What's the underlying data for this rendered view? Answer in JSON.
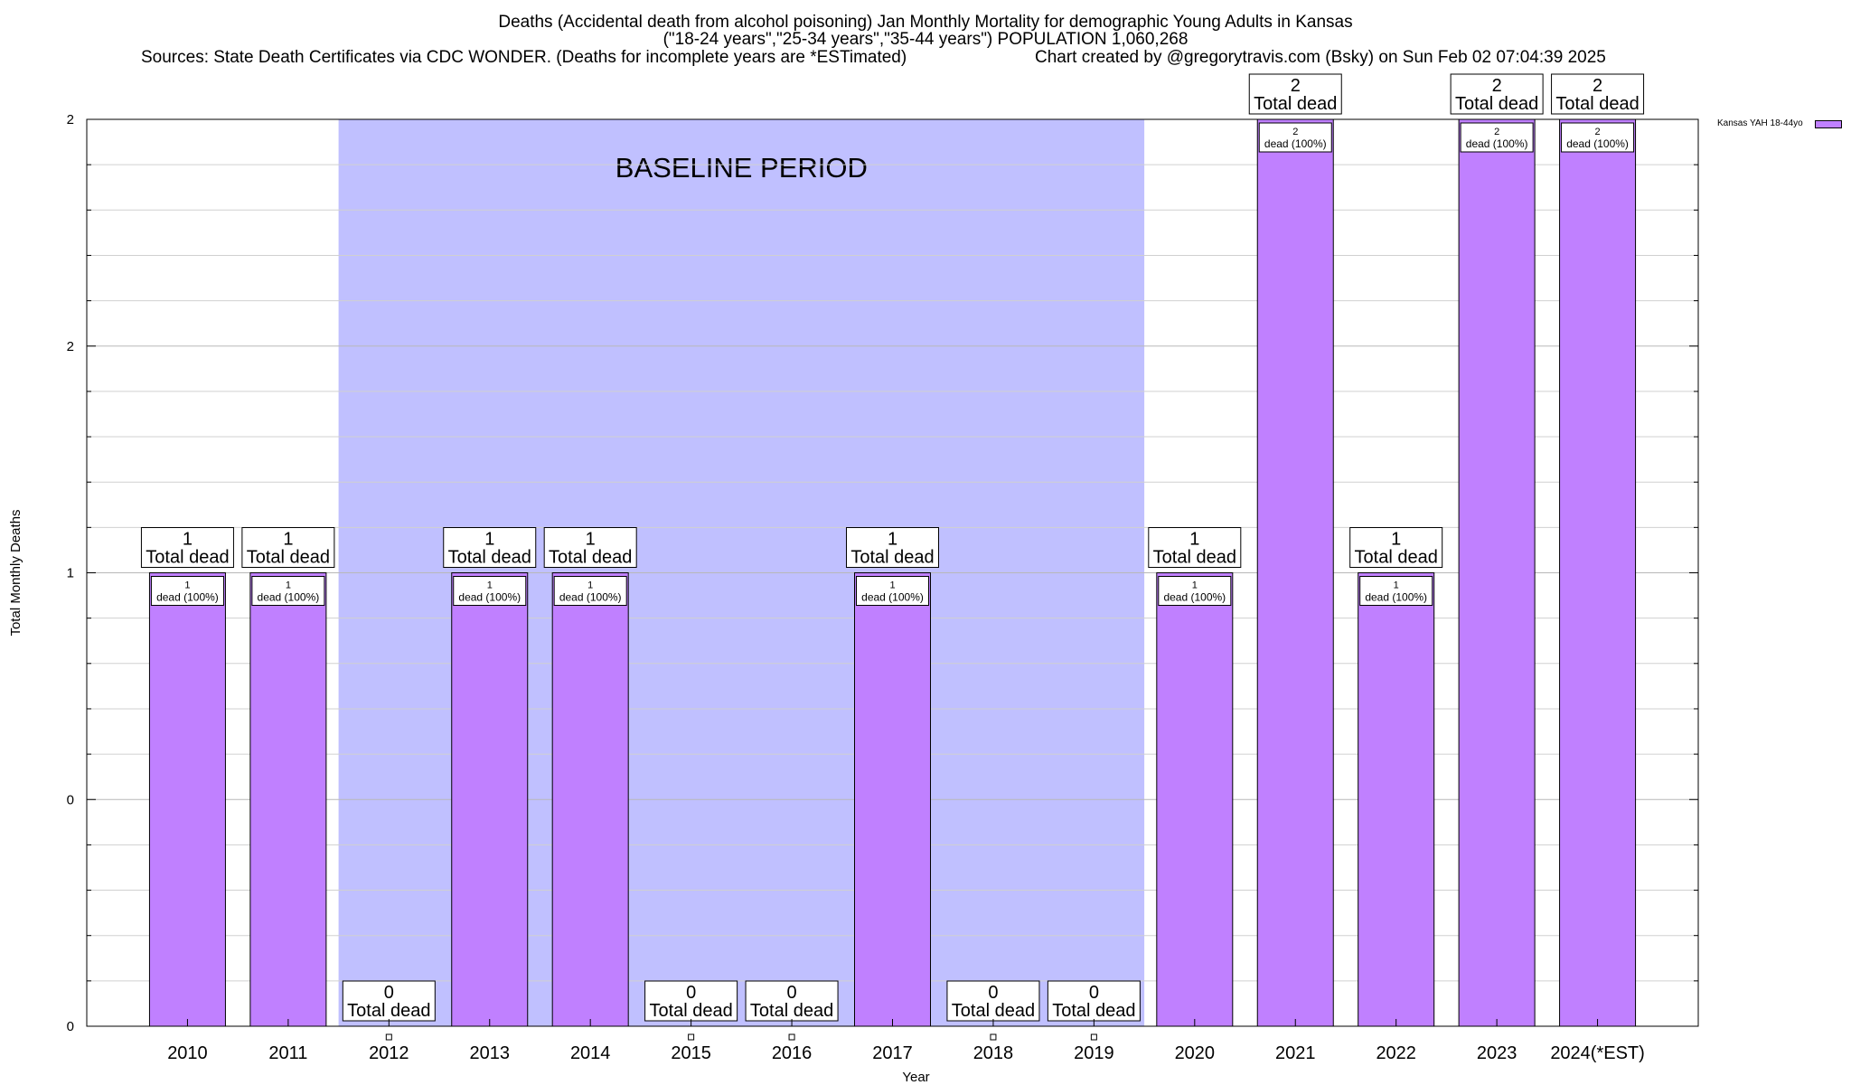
{
  "chart_data": {
    "type": "bar",
    "title_lines": [
      "Deaths (Accidental death from alcohol poisoning) Jan Monthly Mortality for demographic Young Adults in Kansas",
      "(\"18-24 years\",\"25-34 years\",\"35-44 years\") POPULATION 1,060,268"
    ],
    "sources": "Sources: State Death Certificates via CDC WONDER. (Deaths for incomplete years are *ESTimated)",
    "credit": "Chart created by @gregorytravis.com (Bsky) on Sun Feb 02 07:04:39 2025",
    "xlabel": "Year",
    "ylabel": "Total Monthly Deaths",
    "ylim": [
      0,
      2
    ],
    "ytick_labels": [
      "0",
      "0",
      "1",
      "2",
      "2"
    ],
    "categories": [
      "2010",
      "2011",
      "2012",
      "2013",
      "2014",
      "2015",
      "2016",
      "2017",
      "2018",
      "2019",
      "2020",
      "2021",
      "2022",
      "2023",
      "2024(*EST)"
    ],
    "series": [
      {
        "name": "Kansas YAH 18-44yo",
        "color": "#c080ff",
        "values": [
          1,
          1,
          0,
          1,
          1,
          0,
          0,
          1,
          0,
          0,
          1,
          2,
          1,
          2,
          2
        ]
      }
    ],
    "bar_labels": [
      {
        "total": "1",
        "total_label": "Total dead",
        "inner": "1",
        "inner_label": "dead (100%)"
      },
      {
        "total": "1",
        "total_label": "Total dead",
        "inner": "1",
        "inner_label": "dead (100%)"
      },
      {
        "total": "0",
        "total_label": "Total dead"
      },
      {
        "total": "1",
        "total_label": "Total dead",
        "inner": "1",
        "inner_label": "dead (100%)"
      },
      {
        "total": "1",
        "total_label": "Total dead",
        "inner": "1",
        "inner_label": "dead (100%)"
      },
      {
        "total": "0",
        "total_label": "Total dead"
      },
      {
        "total": "0",
        "total_label": "Total dead"
      },
      {
        "total": "1",
        "total_label": "Total dead",
        "inner": "1",
        "inner_label": "dead (100%)"
      },
      {
        "total": "0",
        "total_label": "Total dead"
      },
      {
        "total": "0",
        "total_label": "Total dead"
      },
      {
        "total": "1",
        "total_label": "Total dead",
        "inner": "1",
        "inner_label": "dead (100%)"
      },
      {
        "total": "2",
        "total_label": "Total dead",
        "inner": "2",
        "inner_label": "dead (100%)"
      },
      {
        "total": "1",
        "total_label": "Total dead",
        "inner": "1",
        "inner_label": "dead (100%)"
      },
      {
        "total": "2",
        "total_label": "Total dead",
        "inner": "2",
        "inner_label": "dead (100%)"
      },
      {
        "total": "2",
        "total_label": "Total dead",
        "inner": "2",
        "inner_label": "dead (100%)"
      }
    ],
    "baseline": {
      "label": "BASELINE PERIOD",
      "from": "2012",
      "to": "2019",
      "color": "#c0c0ff"
    },
    "grid": true,
    "legend_position": "top-right"
  }
}
